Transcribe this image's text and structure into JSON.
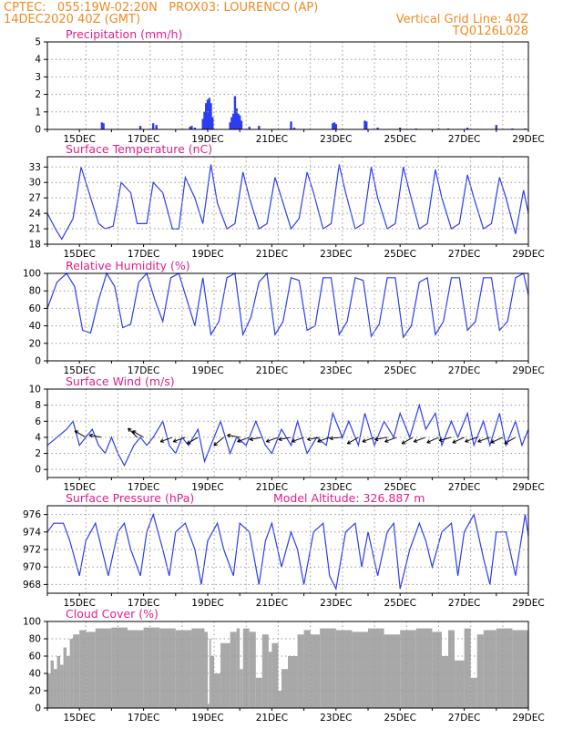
{
  "header": {
    "line1": "CPTEC:   055:19W-02:20N   PROX03: LOURENCO (AP)",
    "line2_left": "14DEC2020 40Z (GMT)",
    "line2_right": "Vertical Grid Line: 40Z",
    "line3_right": "TQ0126L028"
  },
  "colors": {
    "series": "#2c3cf0",
    "cloud": "#a8a8a8",
    "header": "#f08a24",
    "titles": "#e0208a",
    "grid": "#9a9a9a"
  },
  "x_tick_labels": [
    "15DEC",
    "17DEC",
    "19DEC",
    "21DEC",
    "23DEC",
    "25DEC",
    "27DEC",
    "29DEC"
  ],
  "chart_data": [
    {
      "type": "bar",
      "title": "Precipitation (mm/h)",
      "ylim": [
        0,
        5
      ],
      "yticks": [
        0,
        1,
        2,
        3,
        4,
        5
      ],
      "xlim": [
        14.0,
        29.0
      ],
      "events": [
        [
          15.7,
          0.4
        ],
        [
          15.75,
          0.35
        ],
        [
          16.9,
          0.2
        ],
        [
          17.3,
          0.35
        ],
        [
          17.4,
          0.25
        ],
        [
          18.45,
          0.15
        ],
        [
          18.5,
          0.2
        ],
        [
          18.6,
          0.1
        ],
        [
          18.85,
          0.6
        ],
        [
          18.9,
          1.0
        ],
        [
          18.95,
          1.5
        ],
        [
          19.0,
          1.7
        ],
        [
          19.05,
          1.8
        ],
        [
          19.1,
          1.5
        ],
        [
          19.15,
          0.7
        ],
        [
          19.7,
          0.4
        ],
        [
          19.75,
          0.7
        ],
        [
          19.8,
          0.9
        ],
        [
          19.85,
          1.9
        ],
        [
          19.9,
          1.2
        ],
        [
          19.95,
          0.9
        ],
        [
          20.0,
          0.8
        ],
        [
          20.05,
          0.5
        ],
        [
          20.3,
          0.15
        ],
        [
          20.6,
          0.2
        ],
        [
          21.6,
          0.45
        ],
        [
          21.7,
          0.1
        ],
        [
          22.9,
          0.35
        ],
        [
          22.95,
          0.4
        ],
        [
          23.0,
          0.3
        ],
        [
          23.9,
          0.5
        ],
        [
          23.95,
          0.45
        ],
        [
          24.3,
          0.1
        ],
        [
          25.0,
          0.1
        ],
        [
          25.5,
          0.05
        ],
        [
          26.2,
          0.05
        ],
        [
          26.5,
          0.05
        ],
        [
          27.1,
          0.1
        ],
        [
          28.0,
          0.25
        ],
        [
          28.5,
          0.05
        ],
        [
          28.9,
          0.05
        ]
      ]
    },
    {
      "type": "line",
      "title": "Surface Temperature (nC)",
      "ylim": [
        18,
        35
      ],
      "yticks": [
        18,
        21,
        24,
        27,
        30,
        33
      ],
      "x": [
        14.0,
        14.25,
        14.45,
        14.8,
        15.05,
        15.3,
        15.6,
        15.8,
        16.05,
        16.3,
        16.6,
        16.8,
        17.1,
        17.3,
        17.6,
        17.9,
        18.1,
        18.3,
        18.6,
        18.85,
        19.1,
        19.3,
        19.6,
        19.85,
        20.1,
        20.3,
        20.6,
        20.85,
        21.1,
        21.3,
        21.6,
        21.85,
        22.1,
        22.3,
        22.6,
        22.85,
        23.1,
        23.3,
        23.6,
        23.85,
        24.1,
        24.3,
        24.6,
        24.85,
        25.1,
        25.3,
        25.6,
        25.85,
        26.1,
        26.3,
        26.6,
        26.85,
        27.1,
        27.3,
        27.6,
        27.85,
        28.1,
        28.3,
        28.6,
        28.85,
        29.0
      ],
      "values": [
        24,
        21,
        19,
        23,
        33,
        28,
        22,
        21,
        21.5,
        30,
        28,
        22,
        22,
        30,
        28,
        21,
        21,
        31,
        27,
        22,
        33.5,
        26,
        21,
        22,
        32,
        27,
        21,
        22,
        31,
        27,
        21,
        23,
        32,
        28,
        21,
        22,
        33.5,
        28,
        21,
        22,
        33,
        27,
        21,
        22,
        33,
        28,
        21,
        22,
        32.5,
        27,
        21,
        22,
        31.5,
        27,
        21,
        22,
        31,
        27,
        20,
        28.5,
        24
      ]
    },
    {
      "type": "line",
      "title": "Relative Humidity (%)",
      "ylim": [
        0,
        100
      ],
      "yticks": [
        0,
        20,
        40,
        60,
        80,
        100
      ],
      "x": [
        14.0,
        14.3,
        14.6,
        14.85,
        15.1,
        15.35,
        15.6,
        15.85,
        16.1,
        16.35,
        16.6,
        16.85,
        17.1,
        17.35,
        17.6,
        17.85,
        18.1,
        18.35,
        18.6,
        18.85,
        19.1,
        19.35,
        19.6,
        19.85,
        20.1,
        20.35,
        20.6,
        20.85,
        21.1,
        21.35,
        21.6,
        21.85,
        22.1,
        22.35,
        22.6,
        22.85,
        23.1,
        23.35,
        23.6,
        23.85,
        24.1,
        24.35,
        24.6,
        24.85,
        25.1,
        25.35,
        25.6,
        25.85,
        26.1,
        26.35,
        26.6,
        26.85,
        27.1,
        27.35,
        27.6,
        27.85,
        28.1,
        28.35,
        28.6,
        28.85,
        29.0
      ],
      "values": [
        60,
        90,
        100,
        85,
        35,
        32,
        70,
        100,
        85,
        38,
        42,
        90,
        100,
        70,
        45,
        95,
        100,
        70,
        40,
        95,
        30,
        45,
        95,
        100,
        30,
        50,
        90,
        100,
        30,
        45,
        95,
        92,
        35,
        40,
        95,
        95,
        30,
        45,
        95,
        92,
        28,
        42,
        95,
        95,
        27,
        40,
        90,
        95,
        30,
        45,
        95,
        95,
        35,
        45,
        95,
        95,
        35,
        45,
        95,
        100,
        75
      ]
    },
    {
      "type": "line",
      "title": "Surface Wind (m/s)",
      "ylim": [
        -1,
        10
      ],
      "yticks": [
        0,
        2,
        4,
        6,
        8,
        10
      ],
      "x": [
        14.0,
        14.3,
        14.6,
        14.8,
        15.0,
        15.2,
        15.4,
        15.6,
        15.8,
        16.0,
        16.2,
        16.4,
        16.7,
        16.9,
        17.1,
        17.3,
        17.6,
        17.8,
        18.0,
        18.2,
        18.4,
        18.7,
        18.9,
        19.1,
        19.4,
        19.7,
        19.9,
        20.2,
        20.5,
        20.8,
        21.0,
        21.3,
        21.6,
        21.8,
        22.1,
        22.4,
        22.7,
        22.9,
        23.2,
        23.4,
        23.7,
        23.9,
        24.2,
        24.5,
        24.8,
        25.0,
        25.3,
        25.6,
        25.8,
        26.1,
        26.3,
        26.6,
        26.8,
        27.1,
        27.3,
        27.6,
        27.8,
        28.1,
        28.3,
        28.6,
        28.8,
        29.0
      ],
      "values": [
        3,
        4,
        5,
        6,
        3,
        4,
        5,
        3,
        2,
        4,
        2,
        0.5,
        3,
        4,
        3,
        4,
        6,
        3,
        2,
        4,
        3,
        5,
        1,
        3,
        6,
        2,
        4,
        3,
        6,
        3,
        2,
        5,
        3,
        6,
        2,
        4,
        3,
        7,
        4,
        6,
        3,
        7,
        3,
        6,
        4,
        7,
        4,
        8,
        5,
        7,
        3,
        6,
        4,
        7,
        3,
        6,
        3,
        7,
        3,
        6,
        3,
        5
      ],
      "vectors": [
        [
          15.2,
          150
        ],
        [
          15.7,
          170
        ],
        [
          16.8,
          135
        ],
        [
          17.0,
          150
        ],
        [
          17.9,
          200
        ],
        [
          18.3,
          200
        ],
        [
          18.7,
          210
        ],
        [
          19.5,
          220
        ],
        [
          20.0,
          170
        ],
        [
          20.3,
          200
        ],
        [
          20.7,
          190
        ],
        [
          21.2,
          200
        ],
        [
          21.6,
          190
        ],
        [
          22.0,
          200
        ],
        [
          22.5,
          190
        ],
        [
          22.8,
          200
        ],
        [
          23.2,
          185
        ],
        [
          23.7,
          210
        ],
        [
          24.2,
          200
        ],
        [
          24.6,
          190
        ],
        [
          24.9,
          200
        ],
        [
          25.4,
          210
        ],
        [
          25.8,
          200
        ],
        [
          26.2,
          205
        ],
        [
          26.6,
          195
        ],
        [
          27.0,
          205
        ],
        [
          27.4,
          200
        ],
        [
          27.8,
          200
        ],
        [
          28.2,
          205
        ],
        [
          28.6,
          210
        ]
      ]
    },
    {
      "type": "line",
      "title": "Surface Pressure (hPa)",
      "annotation": "Model Altitude: 326.887 m",
      "ylim": [
        967,
        977
      ],
      "yticks": [
        968,
        970,
        972,
        974,
        976
      ],
      "x": [
        14.0,
        14.2,
        14.5,
        14.7,
        15.0,
        15.2,
        15.5,
        15.7,
        15.9,
        16.2,
        16.4,
        16.6,
        16.9,
        17.1,
        17.3,
        17.6,
        17.8,
        18.0,
        18.3,
        18.6,
        18.8,
        19.0,
        19.3,
        19.5,
        19.8,
        20.0,
        20.3,
        20.6,
        20.8,
        21.0,
        21.3,
        21.6,
        21.8,
        22.0,
        22.3,
        22.6,
        22.8,
        23.0,
        23.3,
        23.6,
        23.8,
        24.0,
        24.3,
        24.6,
        24.8,
        25.0,
        25.3,
        25.6,
        25.8,
        26.0,
        26.3,
        26.6,
        26.8,
        27.0,
        27.3,
        27.6,
        27.8,
        28.0,
        28.3,
        28.6,
        28.9,
        29.0
      ],
      "values": [
        974,
        975,
        975,
        973,
        969,
        973,
        975,
        972,
        969,
        974,
        975,
        972,
        969,
        974,
        976,
        972,
        969,
        974,
        975,
        972,
        968,
        973,
        975,
        972,
        969,
        975,
        974,
        968,
        973,
        975,
        970,
        974,
        972,
        968,
        974,
        975,
        969,
        967.5,
        974,
        975,
        970,
        974,
        969,
        974,
        975,
        967.5,
        972,
        975,
        973,
        970,
        974,
        975,
        969,
        974,
        976,
        971,
        968,
        974,
        974,
        969,
        976,
        973.5
      ]
    },
    {
      "type": "area",
      "title": "Cloud Cover (%)",
      "ylim": [
        0,
        100
      ],
      "yticks": [
        0,
        20,
        40,
        60,
        80,
        100
      ],
      "x": [
        14.0,
        14.1,
        14.2,
        14.3,
        14.4,
        14.5,
        14.6,
        14.7,
        14.8,
        15.0,
        15.2,
        15.5,
        16.0,
        16.5,
        17.0,
        17.5,
        18.0,
        18.5,
        18.9,
        19.0,
        19.05,
        19.1,
        19.2,
        19.4,
        19.7,
        19.9,
        20.0,
        20.1,
        20.3,
        20.5,
        20.7,
        20.9,
        21.0,
        21.2,
        21.3,
        21.5,
        21.8,
        22.0,
        22.2,
        22.5,
        23.0,
        23.5,
        24.0,
        24.5,
        25.0,
        25.5,
        26.0,
        26.3,
        26.5,
        26.7,
        27.0,
        27.2,
        27.4,
        27.6,
        28.0,
        28.5,
        29.0
      ],
      "values": [
        40,
        55,
        45,
        60,
        50,
        70,
        60,
        80,
        85,
        90,
        88,
        92,
        93,
        90,
        93,
        92,
        90,
        92,
        88,
        5,
        80,
        60,
        40,
        75,
        88,
        92,
        45,
        92,
        88,
        35,
        85,
        65,
        75,
        20,
        45,
        60,
        85,
        90,
        85,
        92,
        90,
        88,
        92,
        85,
        90,
        92,
        88,
        60,
        90,
        55,
        92,
        35,
        85,
        90,
        92,
        90,
        93
      ]
    }
  ]
}
